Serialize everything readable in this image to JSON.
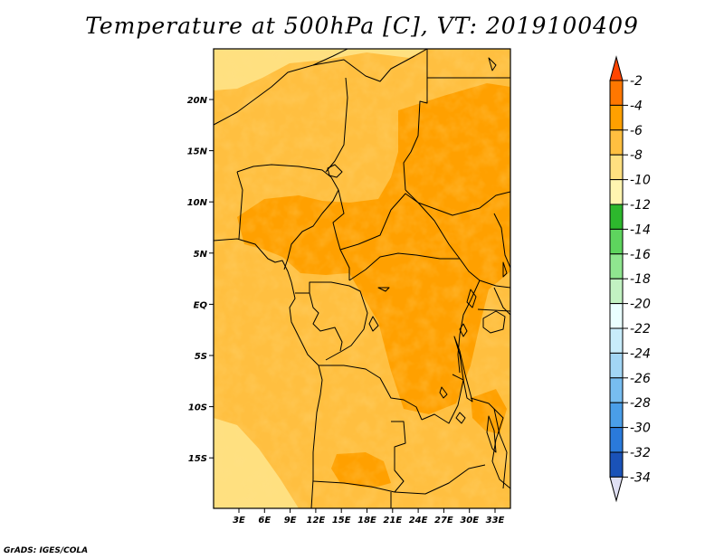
{
  "title": "Temperature at 500hPa [C], VT: 2019100409",
  "credit": "GrADS: IGES/COLA",
  "map": {
    "lat_labels": [
      "20N",
      "15N",
      "10N",
      "5N",
      "EQ",
      "5S",
      "10S",
      "15S"
    ],
    "lon_labels": [
      "3E",
      "6E",
      "9E",
      "12E",
      "15E",
      "18E",
      "21E",
      "24E",
      "27E",
      "30E",
      "33E"
    ],
    "border_color": "#000000"
  },
  "colorbar": {
    "levels": [
      "-2",
      "-4",
      "-6",
      "-8",
      "-10",
      "-12",
      "-14",
      "-16",
      "-18",
      "-20",
      "-22",
      "-24",
      "-26",
      "-28",
      "-30",
      "-32",
      "-34"
    ],
    "colors": [
      "#ff4500",
      "#ff7700",
      "#ffa000",
      "#ffbf40",
      "#ffe080",
      "#fff5b0",
      "#2db82d",
      "#5ed45e",
      "#8fe68f",
      "#c2f2c2",
      "#eaffff",
      "#c8ecfa",
      "#a2d6f5",
      "#77bdf0",
      "#4a9ee8",
      "#2a7adb",
      "#1a52b8",
      "#0a2a8c"
    ],
    "top_color": "#ff4500",
    "bottom_color": "#e8e8f8",
    "lower_triangle_color": "#e0e0f4"
  },
  "field_colors": {
    "warm": "#ffa000",
    "mid": "#ffbf40",
    "cool": "#ffe080"
  }
}
